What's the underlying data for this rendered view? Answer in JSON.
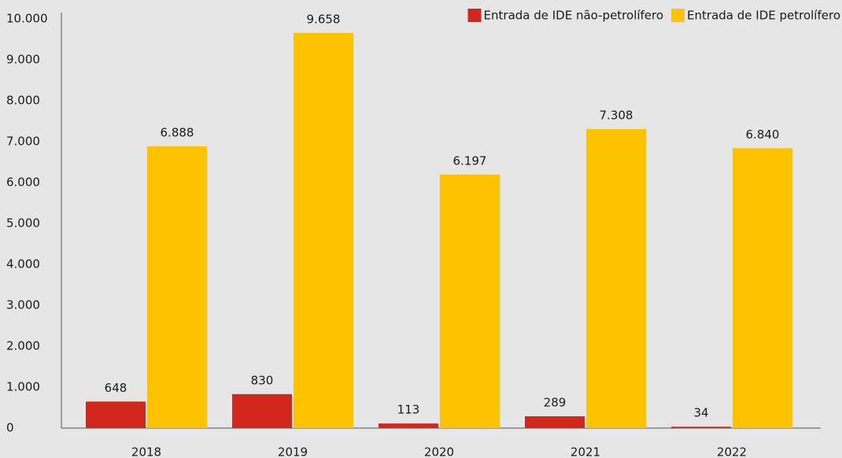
{
  "chart_data": {
    "type": "bar",
    "categories": [
      "2018",
      "2019",
      "2020",
      "2021",
      "2022"
    ],
    "series": [
      {
        "name": "Entrada de IDE não-petrolífero",
        "color": "#d2271d",
        "values": [
          648,
          830,
          113,
          289,
          34
        ],
        "value_labels": [
          "648",
          "830",
          "113",
          "289",
          "34"
        ]
      },
      {
        "name": "Entrada de IDE petrolífero",
        "color": "#fdc300",
        "values": [
          6888,
          9658,
          6197,
          7308,
          6840
        ],
        "value_labels": [
          "6.888",
          "9.658",
          "6.197",
          "7.308",
          "6.840"
        ]
      }
    ],
    "ylim": [
      0,
      10000
    ],
    "yticks": [
      0,
      {
        "value": 1000,
        "label": "1.000"
      },
      {
        "value": 2000,
        "label": "2.000"
      },
      {
        "value": 3000,
        "label": "3.000"
      },
      {
        "value": 4000,
        "label": "4.000"
      },
      {
        "value": 5000,
        "label": "5.000"
      },
      {
        "value": 6000,
        "label": "6.000"
      },
      {
        "value": 7000,
        "label": "7.000"
      },
      {
        "value": 8000,
        "label": "8.000"
      },
      {
        "value": 9000,
        "label": "9.000"
      },
      {
        "value": 10000,
        "label": "10.000"
      }
    ],
    "grid": false,
    "legend": "top-right"
  }
}
